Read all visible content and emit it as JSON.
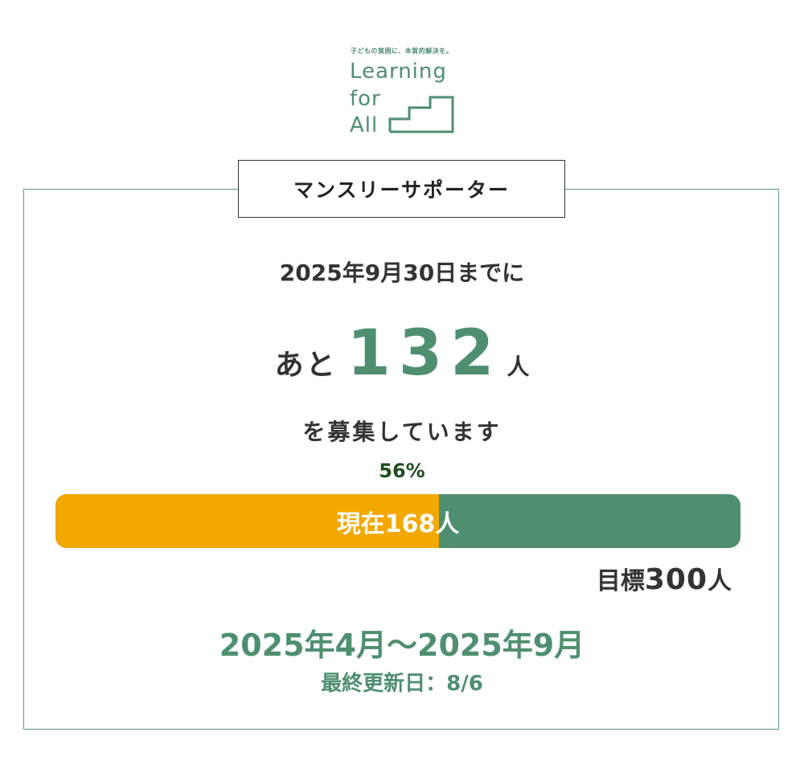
{
  "logo": {
    "tagline": "子どもの貧困に、本質的解決を。",
    "word1": "Learning",
    "word2": "for",
    "word3": "All",
    "color": "#4e8f6f",
    "icon": "stairs-icon"
  },
  "panel": {
    "tag_label": "マンスリーサポーター"
  },
  "campaign": {
    "deadline": "2025年9月30日までに",
    "remaining_prefix": "あと",
    "remaining_count": "132",
    "remaining_unit": "人",
    "recruiting_text": "を募集しています",
    "percent_label": "56%",
    "progress_fraction": 0.56,
    "current_label": "現在168人",
    "goal_prefix": "目標",
    "goal_count": "300",
    "goal_unit": "人",
    "period": "2025年4月〜2025年9月",
    "last_updated": "最終更新日：8/6"
  },
  "colors": {
    "accent_green": "#4e8f6f",
    "progress_fill": "#f3a800",
    "text_dark": "#333333",
    "percent_text": "#1f4e1f"
  }
}
